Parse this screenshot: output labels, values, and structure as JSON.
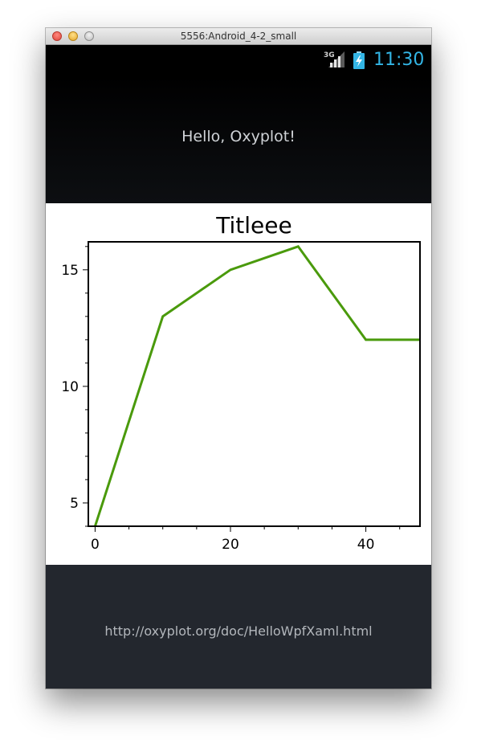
{
  "window": {
    "title": "5556:Android_4-2_small"
  },
  "status_bar": {
    "network": "3G",
    "time": "11:30",
    "time_color": "#33b5e5",
    "icons": [
      "signal-icon",
      "battery-charging-icon"
    ]
  },
  "app": {
    "hello_text": "Hello, Oxyplot!",
    "link_text": "http://oxyplot.org/doc/HelloWpfXaml.html"
  },
  "chart_data": {
    "type": "line",
    "title": "Titleee",
    "xlabel": "",
    "ylabel": "",
    "x": [
      0,
      10,
      20,
      30,
      40,
      50
    ],
    "series": [
      {
        "values": [
          4,
          13,
          15,
          16,
          12,
          12
        ],
        "color": "#4a9a0c"
      }
    ],
    "xlim": [
      -1,
      48
    ],
    "ylim": [
      4,
      16.2
    ],
    "xticks": [
      "0",
      "20",
      "40"
    ],
    "yticks": [
      "5",
      "10",
      "15"
    ],
    "grid": false
  }
}
